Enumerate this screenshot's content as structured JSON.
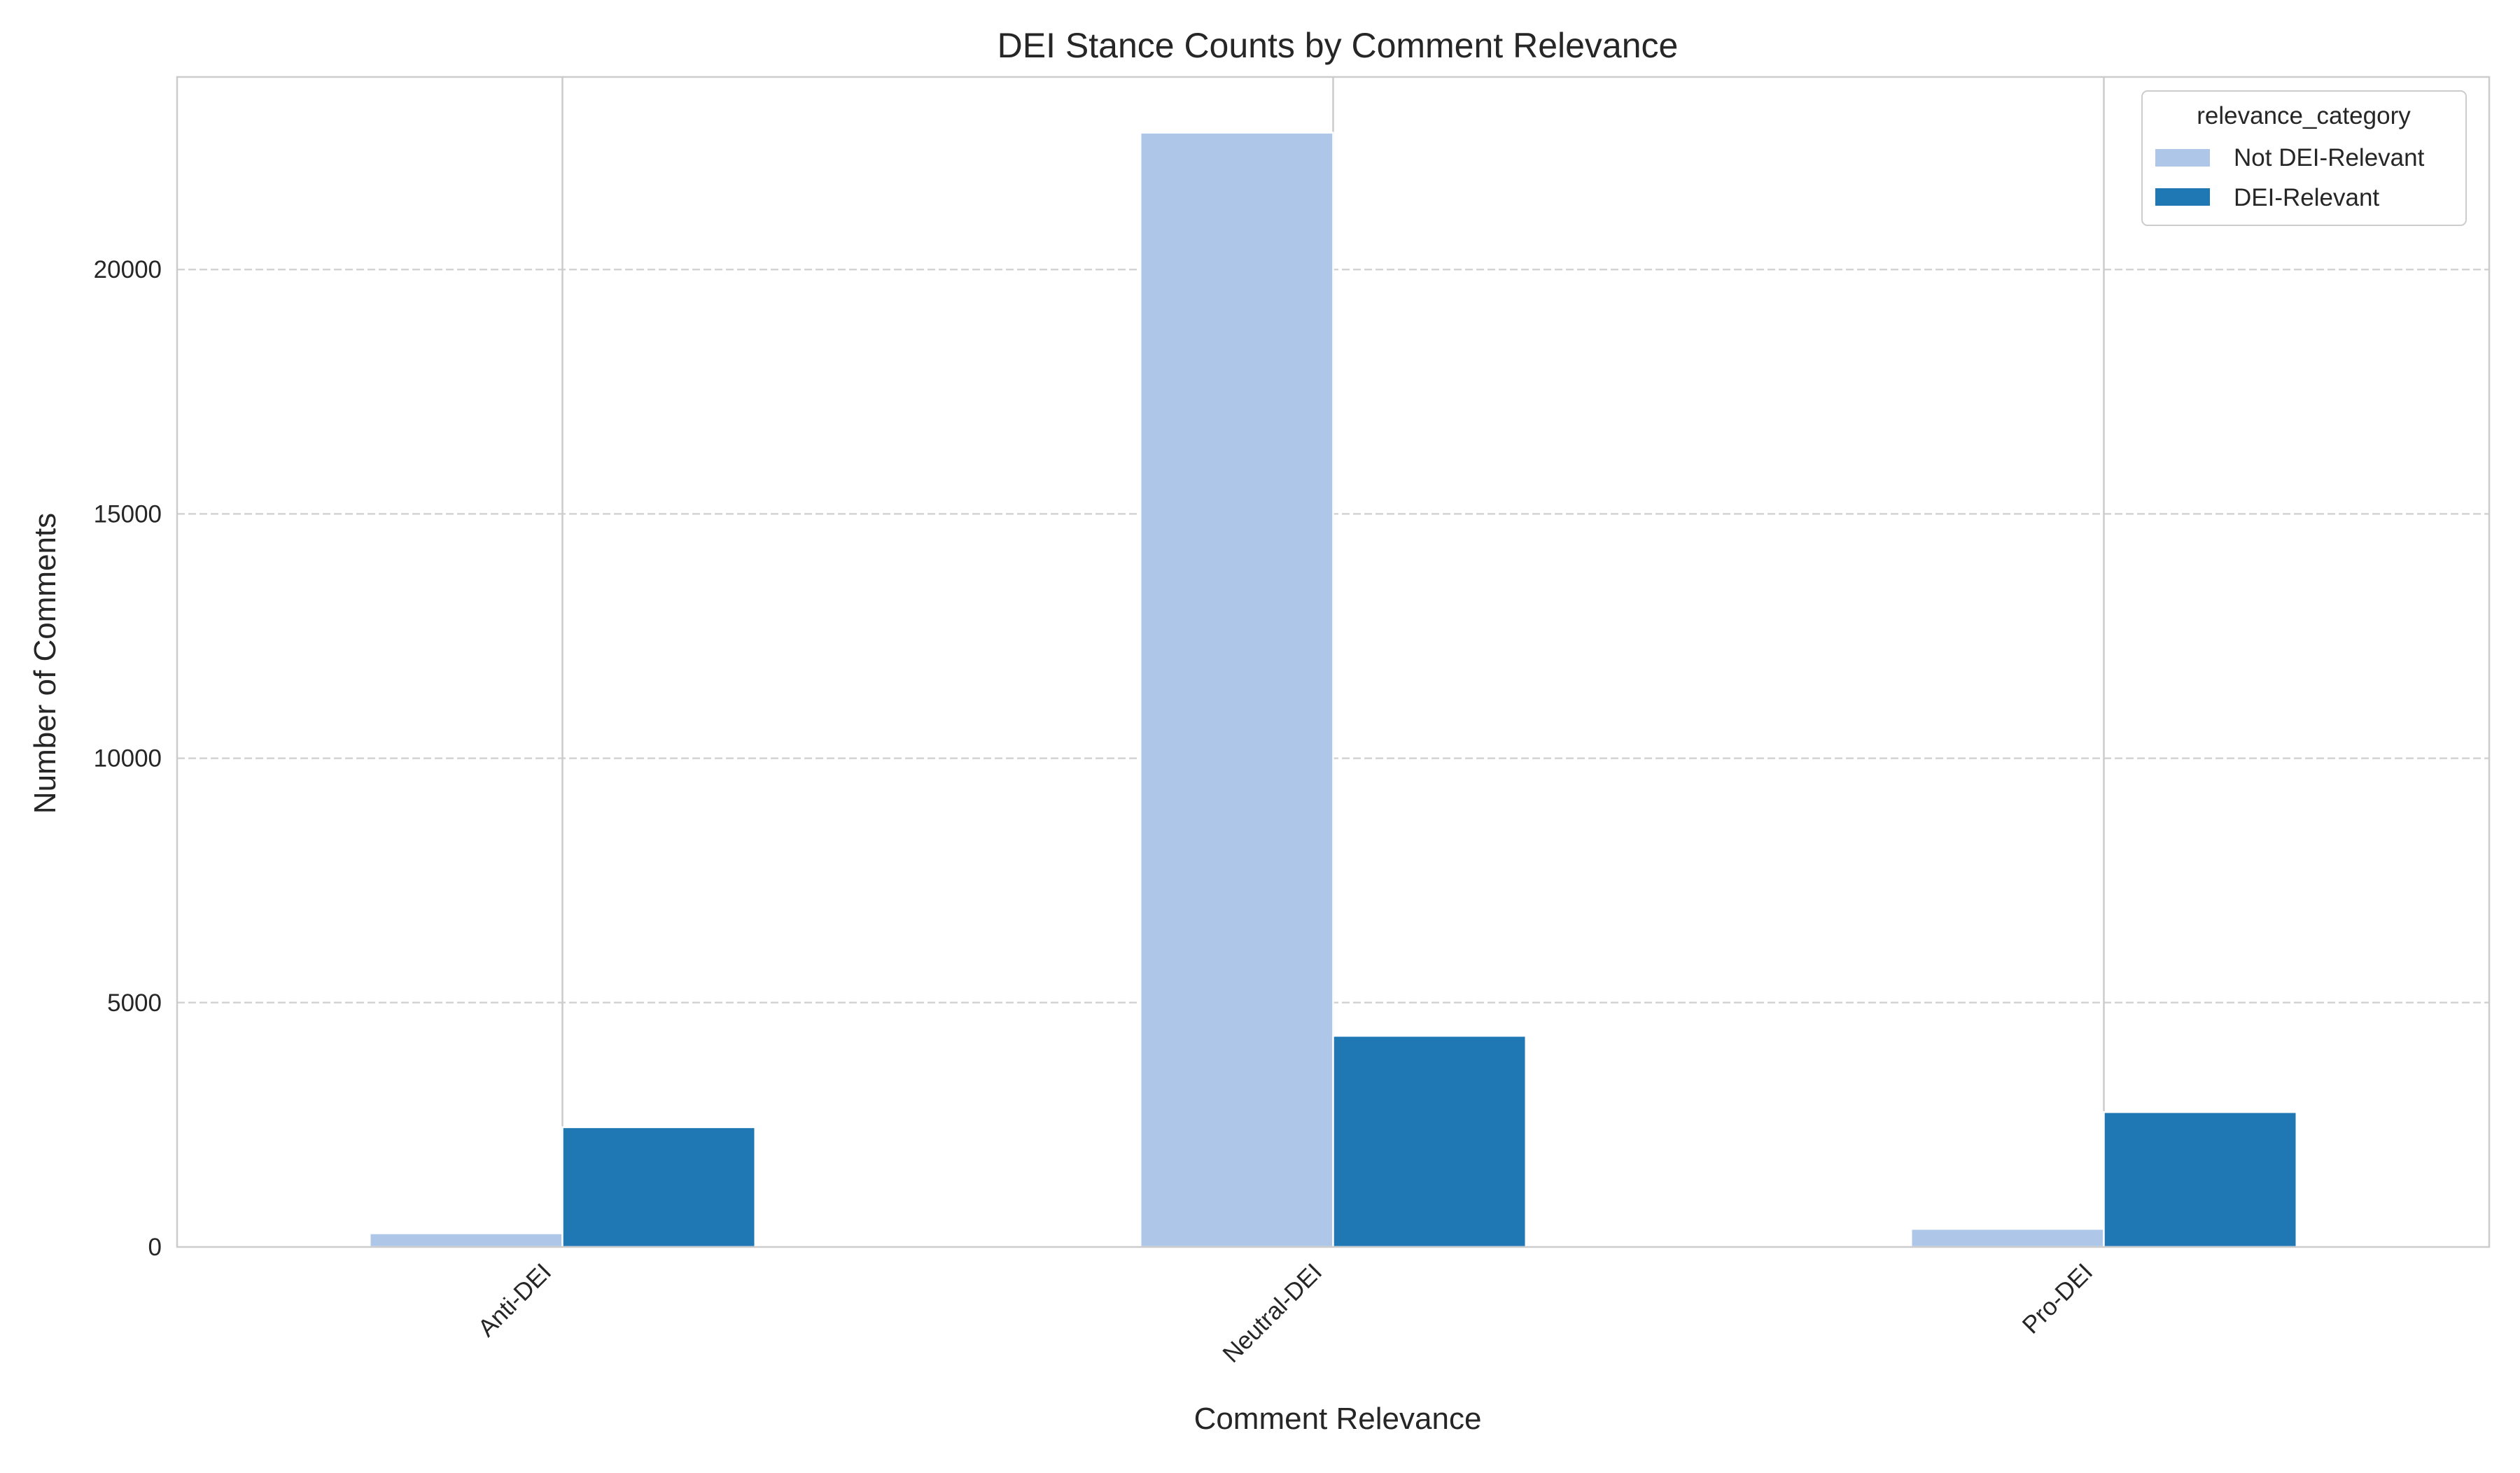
{
  "chart_data": {
    "type": "bar",
    "title": "DEI Stance Counts by Comment Relevance",
    "xlabel": "Comment Relevance",
    "ylabel": "Number of Comments",
    "categories": [
      "Anti-DEI",
      "Neutral-DEI",
      "Pro-DEI"
    ],
    "series": [
      {
        "name": "Not DEI-Relevant",
        "color": "#aec7e8",
        "values": [
          280,
          22800,
          370
        ]
      },
      {
        "name": "DEI-Relevant",
        "color": "#1f77b4",
        "values": [
          2450,
          4320,
          2760
        ]
      }
    ],
    "ylim": [
      0,
      23940
    ],
    "yticks": [
      0,
      5000,
      10000,
      15000,
      20000
    ],
    "ytick_labels": [
      "0",
      "5000",
      "10000",
      "15000",
      "20000"
    ],
    "grid": {
      "y": true,
      "y_style": "dashed",
      "x": true
    },
    "legend": {
      "title": "relevance_category",
      "location": "upper right"
    },
    "xtick_rotation": -45
  }
}
